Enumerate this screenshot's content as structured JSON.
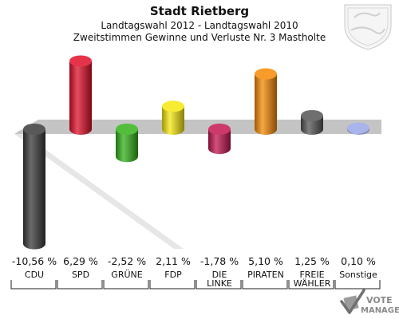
{
  "chart_data": {
    "type": "bar",
    "title": "Stadt Rietberg",
    "subtitle_1": "Landtagswahl 2012 - Landtagswahl 2010",
    "subtitle_2": "Zweitstimmen Gewinne und Verluste Nr. 3 Mastholte",
    "unit": "%",
    "categories": [
      [
        "CDU"
      ],
      [
        "SPD"
      ],
      [
        "GRÜNE"
      ],
      [
        "FDP"
      ],
      [
        "DIE",
        "LINKE"
      ],
      [
        "PIRATEN"
      ],
      [
        "FREIE",
        "WÄHLER"
      ],
      [
        "Sonstige"
      ]
    ],
    "values": [
      -10.56,
      6.29,
      -2.52,
      2.11,
      -1.78,
      5.1,
      1.25,
      0.1
    ],
    "value_labels": [
      "-10,56 %",
      "6,29 %",
      "-2,52 %",
      "2,11 %",
      "-1,78 %",
      "5,10 %",
      "1,25 %",
      "0,10 %"
    ],
    "colors": [
      "#3a3a3a",
      "#e0102a",
      "#33b219",
      "#f5e80f",
      "#c41650",
      "#f58a05",
      "#555555",
      "#9aa7e6"
    ]
  },
  "watermark": {
    "vote": "VOTE",
    "manager": "MANAGER",
    "icon": "checkmark-ballot-icon"
  },
  "crest": {
    "icon": "nrw-coat-of-arms-icon"
  }
}
